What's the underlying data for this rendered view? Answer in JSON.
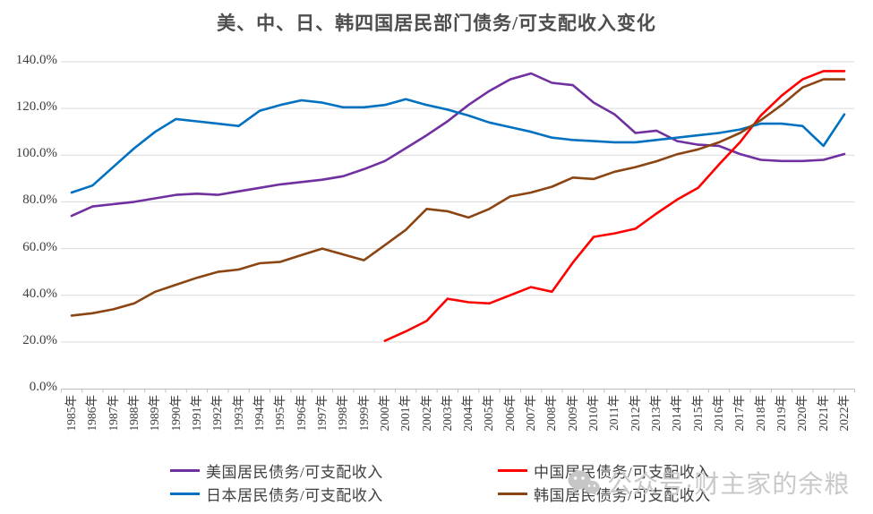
{
  "title": "美、中、日、韩四国居民部门债务/可支配收入变化",
  "watermark": {
    "text": "公众号·财主家的余粮",
    "icon": "wechat-bubbles-icon"
  },
  "colors": {
    "gridline": "#d9d9d9",
    "axis": "#bfbfbf",
    "tick_label": "#3d3d3d",
    "title_text": "#4d4d4d",
    "watermark_gray": "#c9c9c9"
  },
  "chart_data": {
    "type": "line",
    "title": "美、中、日、韩四国居民部门债务/可支配收入变化",
    "xlabel": "",
    "ylabel": "",
    "ylim": [
      0,
      140
    ],
    "ytick_step": 20,
    "yticks": [
      "0.0%",
      "20.0%",
      "40.0%",
      "60.0%",
      "80.0%",
      "100.0%",
      "120.0%",
      "140.0%"
    ],
    "grid": true,
    "legend_position": "bottom",
    "categories": [
      "1985年",
      "1986年",
      "1987年",
      "1988年",
      "1989年",
      "1990年",
      "1991年",
      "1992年",
      "1993年",
      "1994年",
      "1995年",
      "1996年",
      "1997年",
      "1998年",
      "1999年",
      "2000年",
      "2001年",
      "2002年",
      "2003年",
      "2004年",
      "2005年",
      "2006年",
      "2007年",
      "2008年",
      "2009年",
      "2010年",
      "2011年",
      "2012年",
      "2013年",
      "2014年",
      "2015年",
      "2016年",
      "2017年",
      "2018年",
      "2019年",
      "2020年",
      "2021年",
      "2022年"
    ],
    "series": [
      {
        "name": "美国居民债务/可支配收入",
        "color": "#7030A0",
        "values": [
          74,
          78,
          79,
          80,
          81.5,
          83,
          83.5,
          83,
          84.5,
          86,
          87.5,
          88.5,
          89.5,
          91,
          94,
          97.5,
          103,
          108.5,
          114.5,
          121.5,
          127.5,
          132.5,
          135,
          131,
          130,
          122.5,
          117.5,
          109.5,
          110.5,
          106,
          104.5,
          104,
          100.5,
          98,
          97.5,
          97.5,
          98,
          100.5
        ]
      },
      {
        "name": "中国居民债务/可支配收入",
        "color": "#FF0000",
        "values": [
          null,
          null,
          null,
          null,
          null,
          null,
          null,
          null,
          null,
          null,
          null,
          null,
          null,
          null,
          null,
          20.5,
          24.5,
          29,
          38.5,
          37,
          36.5,
          40,
          43.5,
          41.5,
          54,
          65,
          66.5,
          68.5,
          75,
          81,
          86,
          96,
          105.5,
          117,
          125.5,
          132.5,
          136,
          136
        ]
      },
      {
        "name": "日本居民债务/可支配收入",
        "color": "#0070C0",
        "values": [
          84,
          87,
          95,
          103,
          110,
          115.5,
          114.5,
          113.5,
          112.5,
          119,
          121.5,
          123.5,
          122.5,
          120.5,
          120.5,
          121.5,
          124,
          121.5,
          119.5,
          117,
          114,
          112,
          110,
          107.5,
          106.5,
          106,
          105.5,
          105.5,
          106.5,
          107.5,
          108.5,
          109.5,
          111,
          113.5,
          113.5,
          112.5,
          104,
          117.5
        ]
      },
      {
        "name": "韩国居民债务/可支配收入",
        "color": "#8B4513",
        "values": [
          31.3,
          32.3,
          34,
          36.5,
          41.5,
          44.5,
          47.5,
          50,
          51,
          53.7,
          54.3,
          57.2,
          60,
          57.5,
          55,
          61.5,
          68,
          77,
          76,
          73.3,
          77,
          82.3,
          84,
          86.5,
          90.4,
          89.8,
          92.9,
          94.9,
          97.4,
          100.4,
          102.5,
          105.5,
          109.5,
          115,
          121.5,
          129,
          132.5,
          132.5
        ]
      }
    ]
  }
}
